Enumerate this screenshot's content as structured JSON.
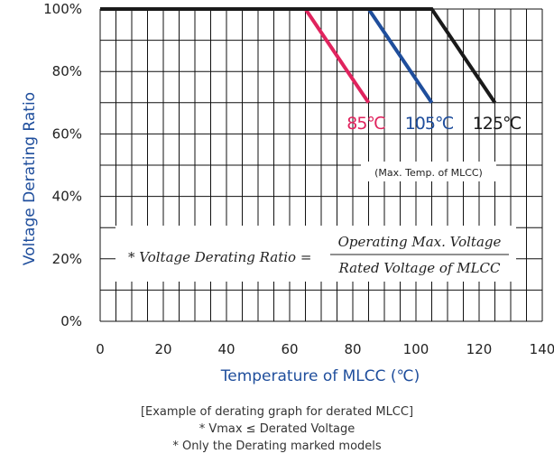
{
  "chart_data": {
    "type": "line",
    "xlabel": "Temperature of MLCC (℃)",
    "ylabel": "Voltage Derating Ratio",
    "xlim": [
      0,
      140
    ],
    "ylim": [
      0,
      100
    ],
    "x_ticks": [
      "0",
      "20",
      "40",
      "60",
      "80",
      "100",
      "120",
      "140"
    ],
    "y_ticks": [
      "0%",
      "20%",
      "40%",
      "60%",
      "80%",
      "100%"
    ],
    "grid": true,
    "series": [
      {
        "name": "85℃",
        "color": "#e0245e",
        "x": [
          0,
          65,
          85
        ],
        "y": [
          100,
          100,
          70
        ]
      },
      {
        "name": "105℃",
        "color": "#1f4e9c",
        "x": [
          0,
          85,
          105
        ],
        "y": [
          100,
          100,
          70
        ]
      },
      {
        "name": "125℃",
        "color": "#1a1a1a",
        "x": [
          0,
          105,
          125
        ],
        "y": [
          100,
          100,
          70
        ]
      }
    ],
    "annotations": {
      "max_temp_note": "(Max. Temp. of MLCC)",
      "formula_prefix": "* Voltage Derating Ratio =",
      "formula_numerator": "Operating Max. Voltage",
      "formula_denominator": "Rated Voltage of MLCC"
    }
  },
  "captions": {
    "line1": "[Example of derating graph for derated MLCC]",
    "line2": "* Vmax ≤ Derated Voltage",
    "line3": "* Only the Derating marked models"
  }
}
